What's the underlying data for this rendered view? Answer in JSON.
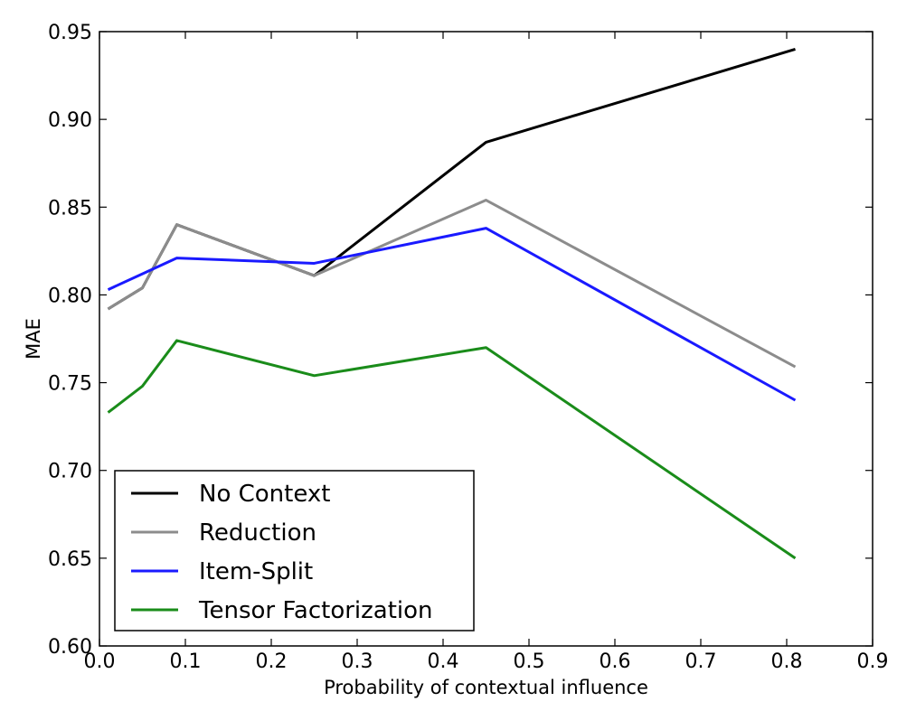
{
  "chart_data": {
    "type": "line",
    "xlabel": "Probability of contextual influence",
    "ylabel": "MAE",
    "xlim": [
      0.0,
      0.9
    ],
    "ylim": [
      0.6,
      0.95
    ],
    "xticks": [
      "0.0",
      "0.1",
      "0.2",
      "0.3",
      "0.4",
      "0.5",
      "0.6",
      "0.7",
      "0.8",
      "0.9"
    ],
    "yticks": [
      "0.60",
      "0.65",
      "0.70",
      "0.75",
      "0.80",
      "0.85",
      "0.90",
      "0.95"
    ],
    "grid": false,
    "legend_position": "lower-left",
    "x": [
      0.01,
      0.05,
      0.09,
      0.25,
      0.45,
      0.81
    ],
    "series": [
      {
        "name": "No Context",
        "color": "#000000",
        "values": [
          0.792,
          0.804,
          0.84,
          0.811,
          0.887,
          0.94
        ]
      },
      {
        "name": "Reduction",
        "color": "#8c8c8c",
        "values": [
          0.792,
          0.804,
          0.84,
          0.811,
          0.854,
          0.759
        ]
      },
      {
        "name": "Item-Split",
        "color": "#1a1aff",
        "values": [
          0.803,
          0.812,
          0.821,
          0.818,
          0.838,
          0.74
        ]
      },
      {
        "name": "Tensor Factorization",
        "color": "#1a8c1a",
        "values": [
          0.733,
          0.748,
          0.774,
          0.754,
          0.77,
          0.65
        ]
      }
    ]
  }
}
